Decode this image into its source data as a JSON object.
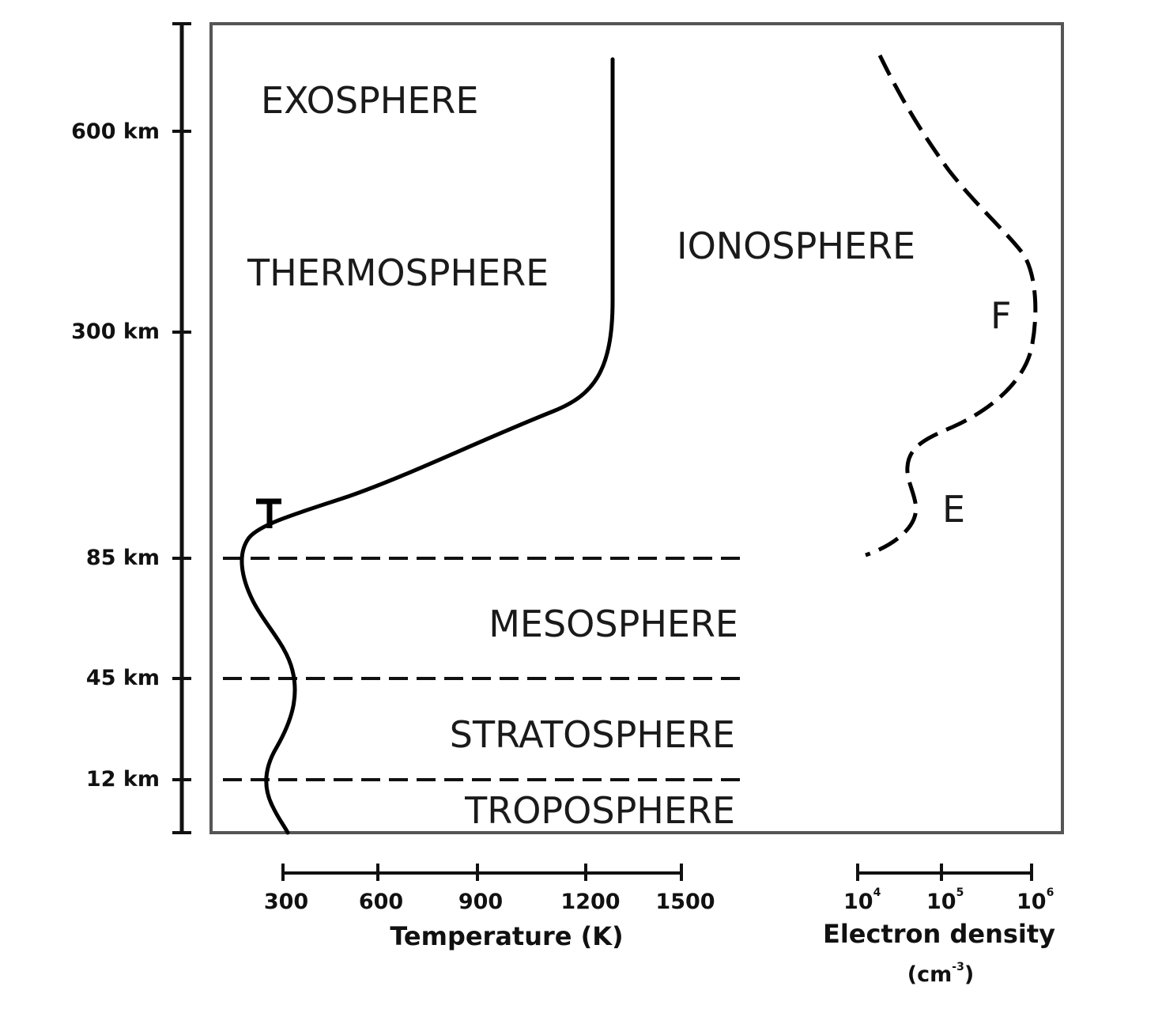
{
  "altitude_ticks": [
    "600 km",
    "300 km",
    "85 km",
    "45 km",
    "12 km"
  ],
  "layers": {
    "exosphere": "EXOSPHERE",
    "thermosphere": "THERMOSPHERE",
    "ionosphere": "IONOSPHERE",
    "mesosphere": "MESOSPHERE",
    "stratosphere": "STRATOSPHERE",
    "troposphere": "TROPOSPHERE"
  },
  "regions": {
    "f": "F",
    "e": "E"
  },
  "marker": "T",
  "temperature_axis": {
    "ticks": [
      "300",
      "600",
      "900",
      "1200",
      "1500"
    ],
    "title": "Temperature (K)"
  },
  "density_axis": {
    "tick_base": "10",
    "tick_exponents": [
      "4",
      "5",
      "6"
    ],
    "title": "Electron density",
    "unit_open": "(cm",
    "unit_exp": "-3",
    "unit_close": ")"
  }
}
